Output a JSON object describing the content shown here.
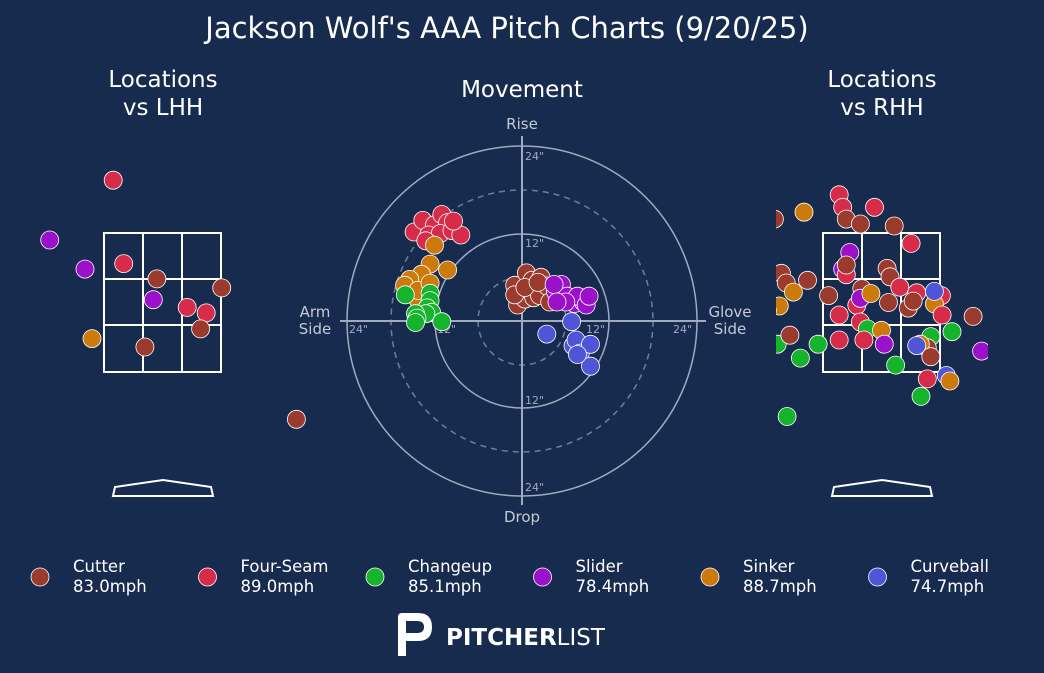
{
  "colors": {
    "background": "#162b4e",
    "Cutter": "#9b3b2e",
    "Four-Seam": "#d62c4a",
    "Changeup": "#16b32d",
    "Slider": "#9b10c9",
    "Sinker": "#cc7a0c",
    "Curveball": "#4e55d6"
  },
  "chart_data": [
    {
      "type": "scatter",
      "title": "Jackson Wolf's AAA Pitch Charts (9/20/25)",
      "panel": "locations_lhh",
      "subtitle_line1": "Locations",
      "subtitle_line2": "vs LHH",
      "points": [
        {
          "pitch": "Four-Seam",
          "x": -0.7,
          "y": 4.26
        },
        {
          "pitch": "Slider",
          "x": -1.6,
          "y": 3.4
        },
        {
          "pitch": "Slider",
          "x": -1.1,
          "y": 2.98
        },
        {
          "pitch": "Four-Seam",
          "x": -0.55,
          "y": 3.06
        },
        {
          "pitch": "Cutter",
          "x": -0.08,
          "y": 2.84
        },
        {
          "pitch": "Cutter",
          "x": 0.84,
          "y": 2.71
        },
        {
          "pitch": "Slider",
          "x": -0.13,
          "y": 2.54
        },
        {
          "pitch": "Four-Seam",
          "x": 0.35,
          "y": 2.43
        },
        {
          "pitch": "Four-Seam",
          "x": 0.62,
          "y": 2.35
        },
        {
          "pitch": "Cutter",
          "x": 0.54,
          "y": 2.12
        },
        {
          "pitch": "Sinker",
          "x": -1.0,
          "y": 1.98
        },
        {
          "pitch": "Cutter",
          "x": -0.25,
          "y": 1.86
        },
        {
          "pitch": "Cutter",
          "x": 1.9,
          "y": 0.82
        }
      ]
    },
    {
      "type": "scatter",
      "panel": "movement",
      "subtitle": "Movement",
      "axis_top": "Rise",
      "axis_bottom": "Drop",
      "axis_left_line1": "Arm",
      "axis_left_line2": "Side",
      "axis_right_line1": "Glove",
      "axis_right_line2": "Side",
      "ring_labels": {
        "rise_12": "12\"",
        "rise_24": "24\"",
        "drop_12": "12\"",
        "drop_24": "24\"",
        "arm_12": "12\"",
        "arm_24": "24\"",
        "glove_12": "12\"",
        "glove_24": "24\""
      },
      "rings_inches": [
        6,
        12,
        18,
        24
      ],
      "points": [
        {
          "pitch": "Four-Seam",
          "x": -14.8,
          "y": 12.2
        },
        {
          "pitch": "Four-Seam",
          "x": -13.6,
          "y": 13.8
        },
        {
          "pitch": "Four-Seam",
          "x": -12.0,
          "y": 13.2
        },
        {
          "pitch": "Four-Seam",
          "x": -11.0,
          "y": 14.6
        },
        {
          "pitch": "Four-Seam",
          "x": -10.2,
          "y": 13.5
        },
        {
          "pitch": "Four-Seam",
          "x": -12.8,
          "y": 11.8
        },
        {
          "pitch": "Four-Seam",
          "x": -11.2,
          "y": 12.0
        },
        {
          "pitch": "Four-Seam",
          "x": -9.6,
          "y": 12.4
        },
        {
          "pitch": "Four-Seam",
          "x": -8.4,
          "y": 11.8
        },
        {
          "pitch": "Four-Seam",
          "x": -13.2,
          "y": 11.0
        },
        {
          "pitch": "Four-Seam",
          "x": -9.4,
          "y": 13.7
        },
        {
          "pitch": "Sinker",
          "x": -10.2,
          "y": 7.0
        },
        {
          "pitch": "Sinker",
          "x": -12.6,
          "y": 7.8
        },
        {
          "pitch": "Sinker",
          "x": -13.8,
          "y": 6.4
        },
        {
          "pitch": "Sinker",
          "x": -15.4,
          "y": 5.7
        },
        {
          "pitch": "Sinker",
          "x": -16.1,
          "y": 4.9
        },
        {
          "pitch": "Sinker",
          "x": -14.3,
          "y": 3.0
        },
        {
          "pitch": "Sinker",
          "x": -14.3,
          "y": 4.2
        },
        {
          "pitch": "Sinker",
          "x": -12.6,
          "y": 5.2
        },
        {
          "pitch": "Sinker",
          "x": -12.0,
          "y": 10.4
        },
        {
          "pitch": "Changeup",
          "x": -16.0,
          "y": 3.6
        },
        {
          "pitch": "Changeup",
          "x": -12.6,
          "y": 3.8
        },
        {
          "pitch": "Changeup",
          "x": -12.6,
          "y": 2.8
        },
        {
          "pitch": "Changeup",
          "x": -13.0,
          "y": 1.8
        },
        {
          "pitch": "Changeup",
          "x": -12.4,
          "y": 1.2
        },
        {
          "pitch": "Changeup",
          "x": -13.2,
          "y": 1.0
        },
        {
          "pitch": "Changeup",
          "x": -14.6,
          "y": 1.0
        },
        {
          "pitch": "Changeup",
          "x": -14.4,
          "y": 0.4
        },
        {
          "pitch": "Changeup",
          "x": -14.6,
          "y": -0.2
        },
        {
          "pitch": "Changeup",
          "x": -11.0,
          "y": -0.1
        },
        {
          "pitch": "Cutter",
          "x": -1.0,
          "y": 4.9
        },
        {
          "pitch": "Cutter",
          "x": -0.6,
          "y": 2.2
        },
        {
          "pitch": "Cutter",
          "x": 0.4,
          "y": 3.0
        },
        {
          "pitch": "Cutter",
          "x": 1.0,
          "y": 4.2
        },
        {
          "pitch": "Cutter",
          "x": 1.6,
          "y": 3.2
        },
        {
          "pitch": "Cutter",
          "x": 2.4,
          "y": 3.5
        },
        {
          "pitch": "Cutter",
          "x": 0.6,
          "y": 6.6
        },
        {
          "pitch": "Cutter",
          "x": 1.4,
          "y": 5.6
        },
        {
          "pitch": "Cutter",
          "x": 2.6,
          "y": 6.0
        },
        {
          "pitch": "Cutter",
          "x": 3.4,
          "y": 4.8
        },
        {
          "pitch": "Cutter",
          "x": -1.0,
          "y": 3.6
        },
        {
          "pitch": "Cutter",
          "x": 3.8,
          "y": 2.6
        },
        {
          "pitch": "Cutter",
          "x": 0.4,
          "y": 4.6
        },
        {
          "pitch": "Cutter",
          "x": 2.2,
          "y": 5.3
        },
        {
          "pitch": "Slider",
          "x": 4.6,
          "y": 4.0
        },
        {
          "pitch": "Slider",
          "x": 5.4,
          "y": 5.0
        },
        {
          "pitch": "Slider",
          "x": 6.2,
          "y": 3.4
        },
        {
          "pitch": "Slider",
          "x": 7.2,
          "y": 2.4
        },
        {
          "pitch": "Slider",
          "x": 8.4,
          "y": 2.6
        },
        {
          "pitch": "Slider",
          "x": 7.6,
          "y": 3.4
        },
        {
          "pitch": "Slider",
          "x": 8.8,
          "y": 2.2
        },
        {
          "pitch": "Slider",
          "x": 9.2,
          "y": 3.4
        },
        {
          "pitch": "Slider",
          "x": 4.4,
          "y": 5.0
        },
        {
          "pitch": "Slider",
          "x": 6.0,
          "y": 2.6
        },
        {
          "pitch": "Slider",
          "x": 4.8,
          "y": 2.6
        },
        {
          "pitch": "Curveball",
          "x": 7.0,
          "y": -3.4
        },
        {
          "pitch": "Curveball",
          "x": 3.4,
          "y": -1.8
        },
        {
          "pitch": "Curveball",
          "x": 7.4,
          "y": -2.6
        },
        {
          "pitch": "Curveball",
          "x": 8.0,
          "y": -4.4
        },
        {
          "pitch": "Curveball",
          "x": 9.4,
          "y": -3.2
        },
        {
          "pitch": "Curveball",
          "x": 9.4,
          "y": -6.2
        },
        {
          "pitch": "Curveball",
          "x": 7.6,
          "y": -4.6
        },
        {
          "pitch": "Curveball",
          "x": 6.8,
          "y": -0.1
        }
      ]
    },
    {
      "type": "scatter",
      "panel": "locations_rhh",
      "subtitle_line1": "Locations",
      "subtitle_line2": "vs RHH",
      "points": [
        {
          "pitch": "Four-Seam",
          "x": -0.6,
          "y": 4.05
        },
        {
          "pitch": "Four-Seam",
          "x": -0.55,
          "y": 3.87
        },
        {
          "pitch": "Four-Seam",
          "x": -0.1,
          "y": 3.87
        },
        {
          "pitch": "Four-Seam",
          "x": 0.42,
          "y": 3.35
        },
        {
          "pitch": "Cutter",
          "x": -0.5,
          "y": 3.7
        },
        {
          "pitch": "Cutter",
          "x": -0.3,
          "y": 3.63
        },
        {
          "pitch": "Cutter",
          "x": 0.18,
          "y": 3.6
        },
        {
          "pitch": "Cutter",
          "x": -1.52,
          "y": 3.7
        },
        {
          "pitch": "Sinker",
          "x": -1.1,
          "y": 3.8
        },
        {
          "pitch": "Sinker",
          "x": -1.9,
          "y": 3.35
        },
        {
          "pitch": "Cutter",
          "x": -1.8,
          "y": 3.16
        },
        {
          "pitch": "Four-Seam",
          "x": -1.85,
          "y": 3.12
        },
        {
          "pitch": "Changeup",
          "x": -1.62,
          "y": 2.92
        },
        {
          "pitch": "Cutter",
          "x": -1.42,
          "y": 2.92
        },
        {
          "pitch": "Cutter",
          "x": -1.35,
          "y": 2.78
        },
        {
          "pitch": "Cutter",
          "x": -1.05,
          "y": 2.82
        },
        {
          "pitch": "Slider",
          "x": -0.45,
          "y": 3.22
        },
        {
          "pitch": "Slider",
          "x": -0.55,
          "y": 2.98
        },
        {
          "pitch": "Four-Seam",
          "x": -0.5,
          "y": 2.9
        },
        {
          "pitch": "Cutter",
          "x": -0.5,
          "y": 3.04
        },
        {
          "pitch": "Cutter",
          "x": 0.08,
          "y": 2.99
        },
        {
          "pitch": "Cutter",
          "x": 0.12,
          "y": 2.87
        },
        {
          "pitch": "Sinker",
          "x": -1.25,
          "y": 2.65
        },
        {
          "pitch": "Sinker",
          "x": -1.45,
          "y": 2.45
        },
        {
          "pitch": "Sinker",
          "x": -1.62,
          "y": 2.38
        },
        {
          "pitch": "Cutter",
          "x": -0.75,
          "y": 2.6
        },
        {
          "pitch": "Cutter",
          "x": -0.28,
          "y": 2.7
        },
        {
          "pitch": "Four-Seam",
          "x": -0.35,
          "y": 2.46
        },
        {
          "pitch": "Slider",
          "x": -0.3,
          "y": 2.56
        },
        {
          "pitch": "Sinker",
          "x": -0.15,
          "y": 2.63
        },
        {
          "pitch": "Cutter",
          "x": 0.1,
          "y": 2.5
        },
        {
          "pitch": "Four-Seam",
          "x": 0.26,
          "y": 2.72
        },
        {
          "pitch": "Four-Seam",
          "x": 0.5,
          "y": 2.64
        },
        {
          "pitch": "Cutter",
          "x": 0.38,
          "y": 2.42
        },
        {
          "pitch": "Cutter",
          "x": 0.45,
          "y": 2.52
        },
        {
          "pitch": "Four-Seam",
          "x": 0.85,
          "y": 2.6
        },
        {
          "pitch": "Sinker",
          "x": 0.75,
          "y": 2.48
        },
        {
          "pitch": "Curveball",
          "x": 0.75,
          "y": 2.66
        },
        {
          "pitch": "Cutter",
          "x": 1.3,
          "y": 2.3
        },
        {
          "pitch": "Four-Seam",
          "x": -0.6,
          "y": 2.32
        },
        {
          "pitch": "Four-Seam",
          "x": -0.3,
          "y": 2.22
        },
        {
          "pitch": "Changeup",
          "x": -0.2,
          "y": 2.12
        },
        {
          "pitch": "Sinker",
          "x": 0.0,
          "y": 2.1
        },
        {
          "pitch": "Four-Seam",
          "x": 0.86,
          "y": 2.32
        },
        {
          "pitch": "Changeup",
          "x": 1.0,
          "y": 2.08
        },
        {
          "pitch": "Changeup",
          "x": 0.7,
          "y": 2.01
        },
        {
          "pitch": "Cutter",
          "x": 0.65,
          "y": 1.85
        },
        {
          "pitch": "Four-Seam",
          "x": -0.25,
          "y": 1.96
        },
        {
          "pitch": "Four-Seam",
          "x": -0.6,
          "y": 1.96
        },
        {
          "pitch": "Sinker",
          "x": 0.55,
          "y": 1.9
        },
        {
          "pitch": "Curveball",
          "x": 0.5,
          "y": 1.88
        },
        {
          "pitch": "Slider",
          "x": 0.04,
          "y": 1.9
        },
        {
          "pitch": "Cutter",
          "x": 0.7,
          "y": 1.72
        },
        {
          "pitch": "Slider",
          "x": 1.42,
          "y": 1.8
        },
        {
          "pitch": "Four-Seam",
          "x": 1.78,
          "y": 1.86
        },
        {
          "pitch": "Changeup",
          "x": -1.48,
          "y": 1.9
        },
        {
          "pitch": "Cutter",
          "x": -1.3,
          "y": 2.03
        },
        {
          "pitch": "Changeup",
          "x": -1.15,
          "y": 1.7
        },
        {
          "pitch": "Changeup",
          "x": -0.9,
          "y": 1.9
        },
        {
          "pitch": "Changeup",
          "x": 0.2,
          "y": 1.6
        },
        {
          "pitch": "Four-Seam",
          "x": 0.65,
          "y": 1.4
        },
        {
          "pitch": "Curveball",
          "x": 0.92,
          "y": 1.45
        },
        {
          "pitch": "Sinker",
          "x": 0.97,
          "y": 1.37
        },
        {
          "pitch": "Changeup",
          "x": 0.56,
          "y": 1.15
        },
        {
          "pitch": "Four-Seam",
          "x": 1.65,
          "y": 1.45
        },
        {
          "pitch": "Changeup",
          "x": -1.34,
          "y": 0.86
        },
        {
          "pitch": "Curveball",
          "x": 1.97,
          "y": 0.54
        },
        {
          "pitch": "Sinker",
          "x": -2.02,
          "y": 3.7
        },
        {
          "pitch": "Curveball",
          "x": -2.0,
          "y": 3.3
        },
        {
          "pitch": "Changeup",
          "x": -2.04,
          "y": 2.58
        },
        {
          "pitch": "Changeup",
          "x": -2.04,
          "y": 2.2
        }
      ]
    }
  ],
  "legend": [
    {
      "pitch": "Cutter",
      "line1": "Cutter",
      "line2": "83.0mph"
    },
    {
      "pitch": "Four-Seam",
      "line1": "Four-Seam",
      "line2": "89.0mph"
    },
    {
      "pitch": "Changeup",
      "line1": "Changeup",
      "line2": "85.1mph"
    },
    {
      "pitch": "Slider",
      "line1": "Slider",
      "line2": "78.4mph"
    },
    {
      "pitch": "Sinker",
      "line1": "Sinker",
      "line2": "88.7mph"
    },
    {
      "pitch": "Curveball",
      "line1": "Curveball",
      "line2": "74.7mph"
    }
  ],
  "brand": {
    "bold": "PITCHER",
    "light": "LIST"
  }
}
